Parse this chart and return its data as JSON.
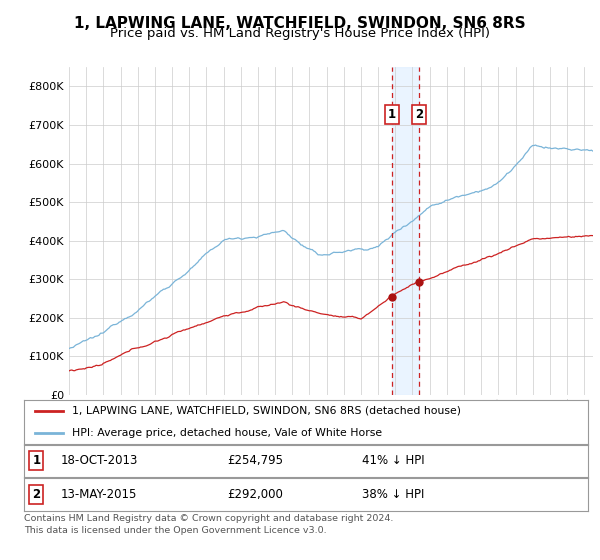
{
  "title": "1, LAPWING LANE, WATCHFIELD, SWINDON, SN6 8RS",
  "subtitle": "Price paid vs. HM Land Registry's House Price Index (HPI)",
  "title_fontsize": 11,
  "subtitle_fontsize": 9.5,
  "ylim": [
    0,
    850000
  ],
  "yticks": [
    0,
    100000,
    200000,
    300000,
    400000,
    500000,
    600000,
    700000,
    800000
  ],
  "ytick_labels": [
    "£0",
    "£100K",
    "£200K",
    "£300K",
    "£400K",
    "£500K",
    "£600K",
    "£700K",
    "£800K"
  ],
  "hpi_color": "#7ab4d8",
  "price_color": "#cc2222",
  "marker_color": "#aa1111",
  "vline_color": "#cc2222",
  "annotation_bg": "#ddeeff",
  "background_color": "#ffffff",
  "grid_color": "#cccccc",
  "legend_label_price": "1, LAPWING LANE, WATCHFIELD, SWINDON, SN6 8RS (detached house)",
  "legend_label_hpi": "HPI: Average price, detached house, Vale of White Horse",
  "sale1_label": "1",
  "sale1_date": "18-OCT-2013",
  "sale1_price": "£254,795",
  "sale1_pct": "41% ↓ HPI",
  "sale1_x": 2013.8,
  "sale1_y": 254795,
  "sale2_label": "2",
  "sale2_date": "13-MAY-2015",
  "sale2_price": "£292,000",
  "sale2_pct": "38% ↓ HPI",
  "sale2_x": 2015.37,
  "sale2_y": 292000,
  "footer": "Contains HM Land Registry data © Crown copyright and database right 2024.\nThis data is licensed under the Open Government Licence v3.0.",
  "xmin": 1995,
  "xmax": 2025.5
}
